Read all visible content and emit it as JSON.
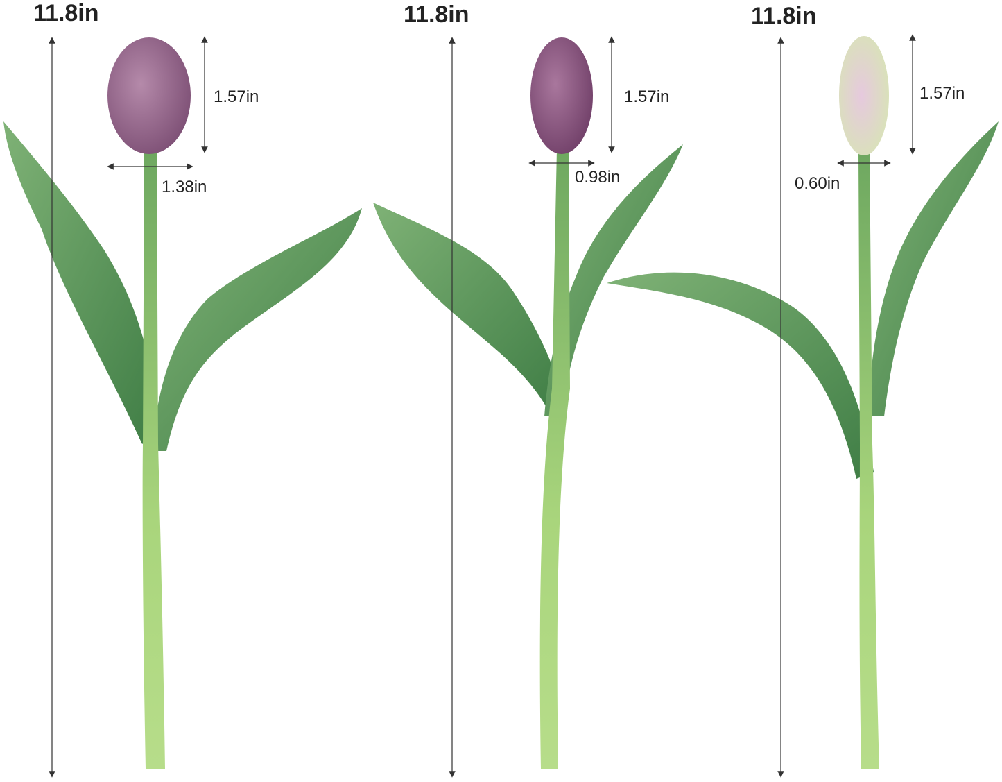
{
  "tulips": [
    {
      "total_height": "11.8in",
      "bud_height": "1.57in",
      "bud_width": "1.38in",
      "bud_color": "#9a6a92"
    },
    {
      "total_height": "11.8in",
      "bud_height": "1.57in",
      "bud_width": "0.98in",
      "bud_color": "#8e5a86"
    },
    {
      "total_height": "11.8in",
      "bud_height": "1.57in",
      "bud_width": "0.60in",
      "bud_color": "#e3ecc8"
    }
  ],
  "colors": {
    "leaf": "#5f9a5a",
    "leaf_light": "#8cbf7e",
    "stem": "#a8d47a",
    "arrow": "#333333"
  }
}
